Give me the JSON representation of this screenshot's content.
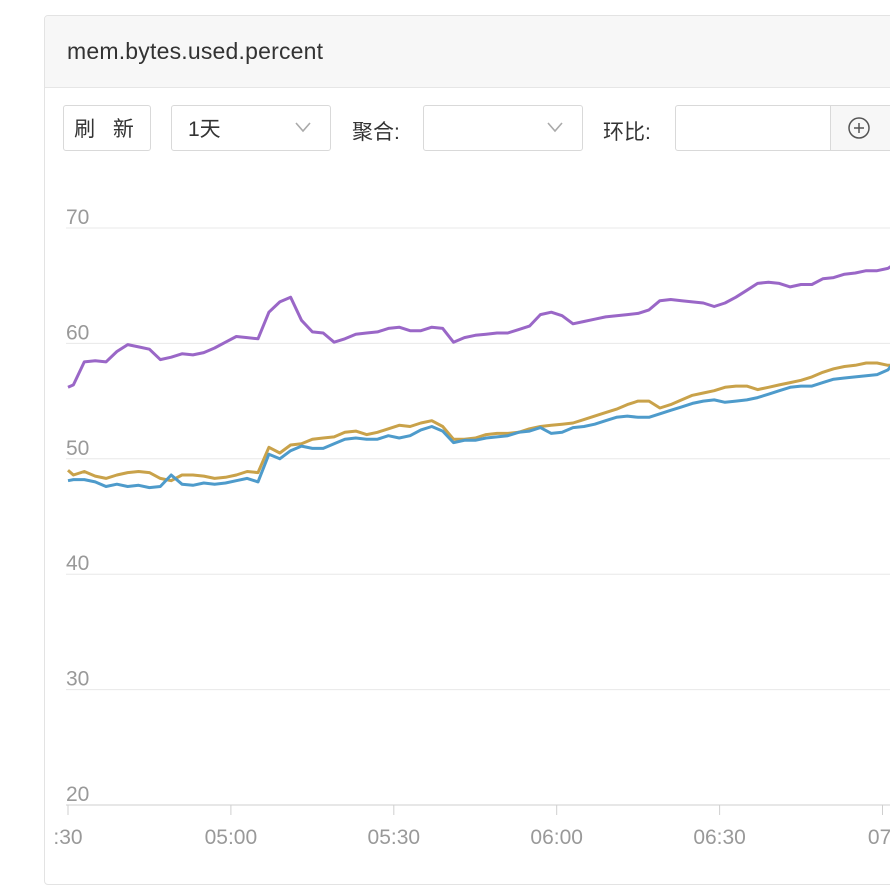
{
  "panel": {
    "title": "mem.bytes.used.percent"
  },
  "toolbar": {
    "refresh_label": "刷 新",
    "range_value": "1天",
    "aggregate_label": "聚合:",
    "aggregate_value": "",
    "ratio_label": "环比:",
    "ratio_value": "",
    "icons": [
      "chevron-down-icon",
      "plus-circle-icon"
    ]
  },
  "colors": {
    "series_purple": "#9a67c7",
    "series_gold": "#c9a24a",
    "series_blue": "#4e9bcb",
    "grid": "#e8e8e8",
    "axis_text": "#999999"
  },
  "chart_data": {
    "type": "line",
    "ylim": [
      20,
      70
    ],
    "yticks": [
      "20",
      "30",
      "40",
      "50",
      "60",
      "70"
    ],
    "xticks": [
      {
        "label": ":30",
        "t": 0
      },
      {
        "label": "05:00",
        "t": 30
      },
      {
        "label": "05:30",
        "t": 60
      },
      {
        "label": "06:00",
        "t": 90
      },
      {
        "label": "06:30",
        "t": 120
      },
      {
        "label": "07:",
        "t": 150
      }
    ],
    "series": [
      {
        "color": "#9a67c7",
        "points": [
          [
            0,
            56.2
          ],
          [
            1,
            56.4
          ],
          [
            3,
            58.4
          ],
          [
            5,
            58.5
          ],
          [
            7,
            58.4
          ],
          [
            9,
            59.3
          ],
          [
            11,
            59.9
          ],
          [
            13,
            59.7
          ],
          [
            15,
            59.5
          ],
          [
            17,
            58.6
          ],
          [
            19,
            58.8
          ],
          [
            21,
            59.1
          ],
          [
            23,
            59.0
          ],
          [
            25,
            59.2
          ],
          [
            27,
            59.6
          ],
          [
            29,
            60.1
          ],
          [
            31,
            60.6
          ],
          [
            33,
            60.5
          ],
          [
            35,
            60.4
          ],
          [
            37,
            62.7
          ],
          [
            39,
            63.6
          ],
          [
            41,
            64.0
          ],
          [
            43,
            62.0
          ],
          [
            45,
            61.0
          ],
          [
            47,
            60.9
          ],
          [
            49,
            60.1
          ],
          [
            51,
            60.4
          ],
          [
            53,
            60.8
          ],
          [
            55,
            60.9
          ],
          [
            57,
            61.0
          ],
          [
            59,
            61.3
          ],
          [
            61,
            61.4
          ],
          [
            63,
            61.1
          ],
          [
            65,
            61.1
          ],
          [
            67,
            61.4
          ],
          [
            69,
            61.3
          ],
          [
            71,
            60.1
          ],
          [
            73,
            60.5
          ],
          [
            75,
            60.7
          ],
          [
            77,
            60.8
          ],
          [
            79,
            60.9
          ],
          [
            81,
            60.9
          ],
          [
            83,
            61.2
          ],
          [
            85,
            61.5
          ],
          [
            87,
            62.5
          ],
          [
            89,
            62.7
          ],
          [
            91,
            62.4
          ],
          [
            93,
            61.7
          ],
          [
            95,
            61.9
          ],
          [
            97,
            62.1
          ],
          [
            99,
            62.3
          ],
          [
            101,
            62.4
          ],
          [
            103,
            62.5
          ],
          [
            105,
            62.6
          ],
          [
            107,
            62.9
          ],
          [
            109,
            63.7
          ],
          [
            111,
            63.8
          ],
          [
            113,
            63.7
          ],
          [
            115,
            63.6
          ],
          [
            117,
            63.5
          ],
          [
            119,
            63.2
          ],
          [
            121,
            63.5
          ],
          [
            123,
            64.0
          ],
          [
            125,
            64.6
          ],
          [
            127,
            65.2
          ],
          [
            129,
            65.3
          ],
          [
            131,
            65.2
          ],
          [
            133,
            64.9
          ],
          [
            135,
            65.1
          ],
          [
            137,
            65.1
          ],
          [
            139,
            65.6
          ],
          [
            141,
            65.7
          ],
          [
            143,
            66.0
          ],
          [
            145,
            66.1
          ],
          [
            147,
            66.3
          ],
          [
            149,
            66.3
          ],
          [
            151,
            66.5
          ],
          [
            152,
            66.8
          ]
        ]
      },
      {
        "color": "#c9a24a",
        "points": [
          [
            0,
            49.0
          ],
          [
            1,
            48.6
          ],
          [
            3,
            48.9
          ],
          [
            5,
            48.5
          ],
          [
            7,
            48.3
          ],
          [
            9,
            48.6
          ],
          [
            11,
            48.8
          ],
          [
            13,
            48.9
          ],
          [
            15,
            48.8
          ],
          [
            17,
            48.3
          ],
          [
            19,
            48.1
          ],
          [
            21,
            48.6
          ],
          [
            23,
            48.6
          ],
          [
            25,
            48.5
          ],
          [
            27,
            48.3
          ],
          [
            29,
            48.4
          ],
          [
            31,
            48.6
          ],
          [
            33,
            48.9
          ],
          [
            35,
            48.8
          ],
          [
            37,
            51.0
          ],
          [
            39,
            50.5
          ],
          [
            41,
            51.2
          ],
          [
            43,
            51.3
          ],
          [
            45,
            51.7
          ],
          [
            47,
            51.8
          ],
          [
            49,
            51.9
          ],
          [
            51,
            52.3
          ],
          [
            53,
            52.4
          ],
          [
            55,
            52.1
          ],
          [
            57,
            52.3
          ],
          [
            59,
            52.6
          ],
          [
            61,
            52.9
          ],
          [
            63,
            52.8
          ],
          [
            65,
            53.1
          ],
          [
            67,
            53.3
          ],
          [
            69,
            52.8
          ],
          [
            71,
            51.7
          ],
          [
            73,
            51.7
          ],
          [
            75,
            51.8
          ],
          [
            77,
            52.1
          ],
          [
            79,
            52.2
          ],
          [
            81,
            52.2
          ],
          [
            83,
            52.3
          ],
          [
            85,
            52.6
          ],
          [
            87,
            52.8
          ],
          [
            89,
            52.9
          ],
          [
            91,
            53.0
          ],
          [
            93,
            53.1
          ],
          [
            95,
            53.4
          ],
          [
            97,
            53.7
          ],
          [
            99,
            54.0
          ],
          [
            101,
            54.3
          ],
          [
            103,
            54.7
          ],
          [
            105,
            55.0
          ],
          [
            107,
            55.0
          ],
          [
            109,
            54.4
          ],
          [
            111,
            54.7
          ],
          [
            113,
            55.1
          ],
          [
            115,
            55.5
          ],
          [
            117,
            55.7
          ],
          [
            119,
            55.9
          ],
          [
            121,
            56.2
          ],
          [
            123,
            56.3
          ],
          [
            125,
            56.3
          ],
          [
            127,
            56.0
          ],
          [
            129,
            56.2
          ],
          [
            131,
            56.4
          ],
          [
            133,
            56.6
          ],
          [
            135,
            56.8
          ],
          [
            137,
            57.1
          ],
          [
            139,
            57.5
          ],
          [
            141,
            57.8
          ],
          [
            143,
            58.0
          ],
          [
            145,
            58.1
          ],
          [
            147,
            58.3
          ],
          [
            149,
            58.3
          ],
          [
            151,
            58.1
          ],
          [
            152,
            58.1
          ]
        ]
      },
      {
        "color": "#4e9bcb",
        "points": [
          [
            0,
            48.1
          ],
          [
            1,
            48.2
          ],
          [
            3,
            48.2
          ],
          [
            5,
            48.0
          ],
          [
            7,
            47.6
          ],
          [
            9,
            47.8
          ],
          [
            11,
            47.6
          ],
          [
            13,
            47.7
          ],
          [
            15,
            47.5
          ],
          [
            17,
            47.6
          ],
          [
            19,
            48.6
          ],
          [
            21,
            47.8
          ],
          [
            23,
            47.7
          ],
          [
            25,
            47.9
          ],
          [
            27,
            47.8
          ],
          [
            29,
            47.9
          ],
          [
            31,
            48.1
          ],
          [
            33,
            48.3
          ],
          [
            35,
            48.0
          ],
          [
            37,
            50.4
          ],
          [
            39,
            50.0
          ],
          [
            41,
            50.7
          ],
          [
            43,
            51.1
          ],
          [
            45,
            50.9
          ],
          [
            47,
            50.9
          ],
          [
            49,
            51.3
          ],
          [
            51,
            51.7
          ],
          [
            53,
            51.8
          ],
          [
            55,
            51.7
          ],
          [
            57,
            51.7
          ],
          [
            59,
            52.0
          ],
          [
            61,
            51.8
          ],
          [
            63,
            52.0
          ],
          [
            65,
            52.5
          ],
          [
            67,
            52.8
          ],
          [
            69,
            52.4
          ],
          [
            71,
            51.4
          ],
          [
            73,
            51.6
          ],
          [
            75,
            51.6
          ],
          [
            77,
            51.8
          ],
          [
            79,
            51.9
          ],
          [
            81,
            52.0
          ],
          [
            83,
            52.3
          ],
          [
            85,
            52.4
          ],
          [
            87,
            52.7
          ],
          [
            89,
            52.2
          ],
          [
            91,
            52.3
          ],
          [
            93,
            52.7
          ],
          [
            95,
            52.8
          ],
          [
            97,
            53.0
          ],
          [
            99,
            53.3
          ],
          [
            101,
            53.6
          ],
          [
            103,
            53.7
          ],
          [
            105,
            53.6
          ],
          [
            107,
            53.6
          ],
          [
            109,
            53.9
          ],
          [
            111,
            54.2
          ],
          [
            113,
            54.5
          ],
          [
            115,
            54.8
          ],
          [
            117,
            55.0
          ],
          [
            119,
            55.1
          ],
          [
            121,
            54.9
          ],
          [
            123,
            55.0
          ],
          [
            125,
            55.1
          ],
          [
            127,
            55.3
          ],
          [
            129,
            55.6
          ],
          [
            131,
            55.9
          ],
          [
            133,
            56.2
          ],
          [
            135,
            56.3
          ],
          [
            137,
            56.3
          ],
          [
            139,
            56.6
          ],
          [
            141,
            56.9
          ],
          [
            143,
            57.0
          ],
          [
            145,
            57.1
          ],
          [
            147,
            57.2
          ],
          [
            149,
            57.3
          ],
          [
            151,
            57.7
          ],
          [
            152,
            58.3
          ]
        ]
      }
    ]
  }
}
